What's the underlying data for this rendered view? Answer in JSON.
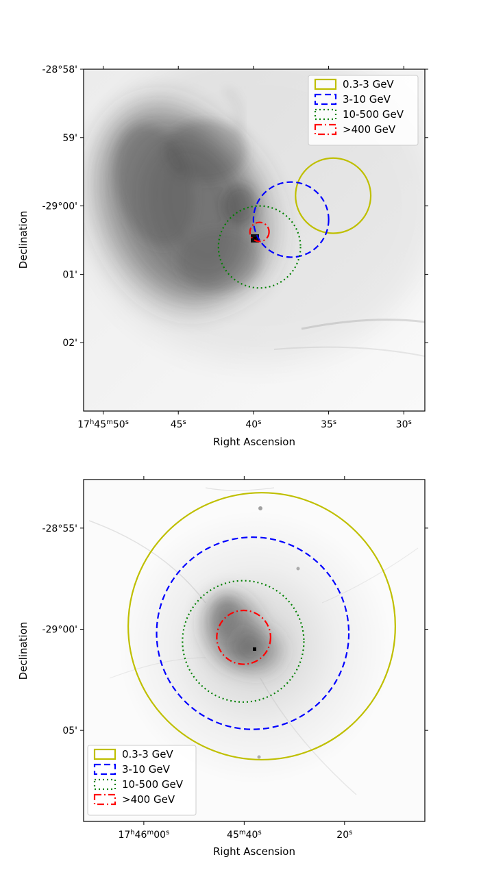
{
  "figure": {
    "panels": [
      {
        "xlabel": "Right Ascension",
        "ylabel": "Declination",
        "yticks": [
          {
            "label": "-28°58'",
            "dec_arcmin": 0
          },
          {
            "label": "59'",
            "dec_arcmin": -1
          },
          {
            "label": "-29°00'",
            "dec_arcmin": -2
          },
          {
            "label": "01'",
            "dec_arcmin": -3
          },
          {
            "label": "02'",
            "dec_arcmin": -4
          }
        ],
        "xticks": [
          {
            "hm": "17",
            "h_sup": "h",
            "m": "45",
            "m_sup": "m",
            "s": "50",
            "s_sup": "s",
            "ra_sec": 50
          },
          {
            "hm": "",
            "h_sup": "",
            "m": "",
            "m_sup": "",
            "s": "45",
            "s_sup": "s",
            "ra_sec": 45
          },
          {
            "hm": "",
            "h_sup": "",
            "m": "",
            "m_sup": "",
            "s": "40",
            "s_sup": "s",
            "ra_sec": 40
          },
          {
            "hm": "",
            "h_sup": "",
            "m": "",
            "m_sup": "",
            "s": "35",
            "s_sup": "s",
            "ra_sec": 35
          },
          {
            "hm": "",
            "h_sup": "",
            "m": "",
            "m_sup": "",
            "s": "30",
            "s_sup": "s",
            "ra_sec": 30
          }
        ],
        "legend": {
          "location": "upper right",
          "entries": [
            "0.3-3 GeV",
            "3-10 GeV",
            "10-500 GeV",
            ">400 GeV"
          ]
        }
      },
      {
        "xlabel": "Right Ascension",
        "ylabel": "Declination",
        "yticks": [
          {
            "label": "-28°55'",
            "dec_arcmin": -55
          },
          {
            "label": "-29°00'",
            "dec_arcmin": -60
          },
          {
            "label": "05'",
            "dec_arcmin": -65
          }
        ],
        "xticks": [
          {
            "hm": "17",
            "h_sup": "h",
            "m": "46",
            "m_sup": "m",
            "s": "00",
            "s_sup": "s",
            "ra_sec": 60
          },
          {
            "hm": "",
            "h_sup": "",
            "m": "45",
            "m_sup": "m",
            "s": "40",
            "s_sup": "s",
            "ra_sec": 40
          },
          {
            "hm": "",
            "h_sup": "",
            "m": "",
            "m_sup": "",
            "s": "20",
            "s_sup": "s",
            "ra_sec": 20
          }
        ],
        "legend": {
          "location": "lower left",
          "entries": [
            "0.3-3 GeV",
            "3-10 GeV",
            "10-500 GeV",
            ">400 GeV"
          ]
        }
      }
    ]
  },
  "chart_data": [
    {
      "type": "scatter",
      "description_kind": "sky-map with source-position error circles",
      "colormap": "grayscale inverted",
      "x_axis": {
        "label": "Right Ascension",
        "unit": "RA seconds (17h45m)",
        "range": [
          51.3,
          28.6
        ],
        "ticks": [
          50,
          45,
          40,
          35,
          30
        ]
      },
      "y_axis": {
        "label": "Declination",
        "unit": "arcmin offset from -28°58'",
        "range": [
          0,
          -5
        ],
        "ticks": [
          0,
          -1,
          -2,
          -3,
          -4
        ]
      },
      "regions": [
        {
          "band": "0.3-3 GeV",
          "color": "#bfbf00",
          "style": "solid",
          "ra_sec": 34.7,
          "dec_arcmin": -1.85,
          "radius_arcmin": 0.55
        },
        {
          "band": "3-10 GeV",
          "color": "#0000ff",
          "style": "dashed",
          "ra_sec": 37.5,
          "dec_arcmin": -2.2,
          "radius_arcmin": 0.55
        },
        {
          "band": "10-500 GeV",
          "color": "#008000",
          "style": "dotted",
          "ra_sec": 39.6,
          "dec_arcmin": -2.6,
          "radius_arcmin": 0.6
        },
        {
          "band": ">400 GeV",
          "color": "#ff0000",
          "style": "dashdot",
          "ra_sec": 39.6,
          "dec_arcmin": -2.38,
          "radius_arcmin": 0.14
        }
      ],
      "legend": {
        "location": "upper right"
      }
    },
    {
      "type": "scatter",
      "description_kind": "sky-map with source-position error circles",
      "colormap": "grayscale inverted",
      "x_axis": {
        "label": "Right Ascension",
        "unit": "RA seconds offset from 17h45m",
        "range": [
          72,
          4
        ],
        "ticks": [
          60,
          40,
          20
        ]
      },
      "y_axis": {
        "label": "Declination",
        "unit": "arcmin",
        "range": [
          -52.6,
          -69.5
        ],
        "ticks": [
          -55,
          -60,
          -65
        ]
      },
      "regions": [
        {
          "band": "0.3-3 GeV",
          "color": "#bfbf00",
          "style": "solid",
          "ra_sec": 36.5,
          "dec_arcmin": -59.85,
          "radius_arcmin": 6.6
        },
        {
          "band": "3-10 GeV",
          "color": "#0000ff",
          "style": "dashed",
          "ra_sec": 38.3,
          "dec_arcmin": -60.2,
          "radius_arcmin": 4.75
        },
        {
          "band": "10-500 GeV",
          "color": "#008000",
          "style": "dotted",
          "ra_sec": 40.2,
          "dec_arcmin": -60.6,
          "radius_arcmin": 3.0
        },
        {
          "band": ">400 GeV",
          "color": "#ff0000",
          "style": "dashdot",
          "ra_sec": 40.1,
          "dec_arcmin": -60.4,
          "radius_arcmin": 1.33
        }
      ],
      "legend": {
        "location": "lower left"
      }
    }
  ]
}
